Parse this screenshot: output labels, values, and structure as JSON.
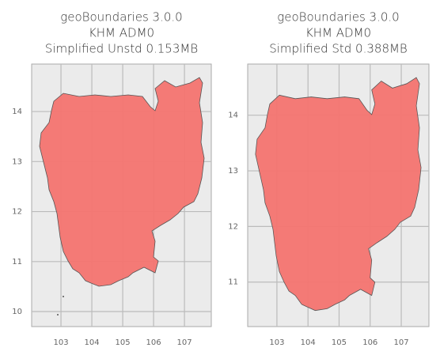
{
  "chart_data": [
    {
      "type": "map",
      "title": [
        "geoBoundaries 3.0.0",
        "KHM ADM0",
        "Simplified Unstd 0.153MB"
      ],
      "xlim": [
        102.05,
        107.87
      ],
      "ylim": [
        9.7,
        14.95
      ],
      "xticks": [
        103,
        104,
        105,
        106,
        107
      ],
      "yticks": [
        10,
        11,
        12,
        13,
        14
      ],
      "grid": true,
      "color": "#f47470"
    },
    {
      "type": "map",
      "title": [
        "geoBoundaries 3.0.0",
        "KHM ADM0",
        "Simplified Std 0.388MB"
      ],
      "xlim": [
        102.06,
        107.89
      ],
      "ylim": [
        10.2,
        14.92
      ],
      "xticks": [
        103,
        104,
        105,
        106,
        107
      ],
      "yticks": [
        11,
        12,
        13,
        14
      ],
      "grid": true,
      "color": "#f47470"
    }
  ]
}
